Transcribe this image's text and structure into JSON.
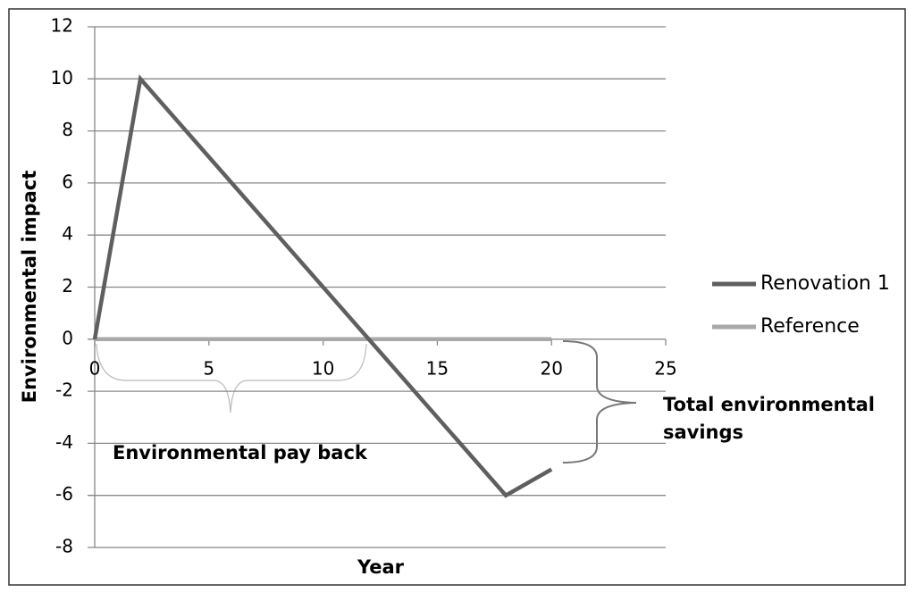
{
  "chart_data": {
    "type": "line",
    "xlabel": "Year",
    "ylabel": "Environmental impact",
    "series": [
      {
        "name": "Renovation 1",
        "color": "#5f5f5f",
        "x": [
          0,
          2,
          18,
          20
        ],
        "values": [
          0,
          10,
          -6,
          -5
        ]
      },
      {
        "name": "Reference",
        "color": "#a9a9a9",
        "x": [
          0,
          20
        ],
        "values": [
          0,
          0
        ]
      }
    ],
    "xlim": [
      0,
      25
    ],
    "xticks": [
      0,
      5,
      10,
      15,
      20,
      25
    ],
    "ylim": [
      -8,
      12
    ],
    "yticks": [
      -8,
      -6,
      -4,
      -2,
      0,
      2,
      4,
      6,
      8,
      10,
      12
    ],
    "grid": true,
    "legend": "right",
    "annotations": [
      "Environmental pay back",
      "Total environmental savings"
    ]
  }
}
